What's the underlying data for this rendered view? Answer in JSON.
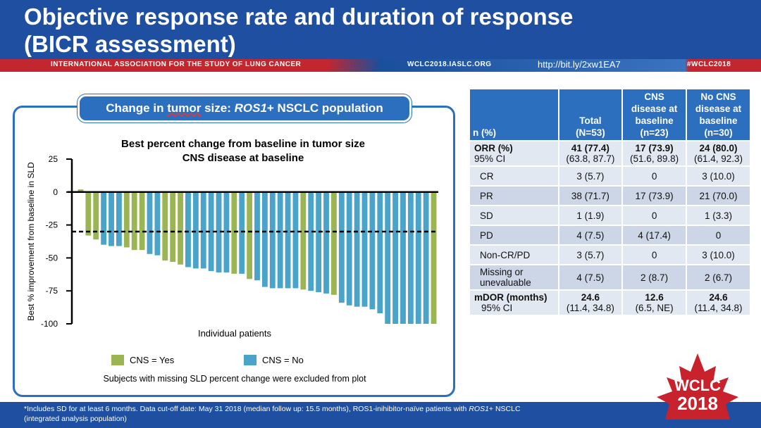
{
  "header": {
    "title_line1": "Objective response rate and duration of response",
    "title_line2": "(BICR assessment)",
    "association": "INTERNATIONAL ASSOCIATION FOR THE STUDY OF LUNG CANCER",
    "website": "WCLC2018.IASLC.ORG",
    "link": "http://bit.ly/2xw1EA7",
    "hashtag": "#WCLC2018"
  },
  "chart_box": {
    "pill_prefix": "Change in ",
    "pill_under": "tumor",
    "pill_mid": " size: ",
    "pill_italic": "ROS1",
    "pill_suffix": "+ NSCLC population"
  },
  "chart_data": {
    "type": "bar",
    "title_line1": "Best percent change from baseline in tumor size",
    "title_line2": "CNS disease at baseline",
    "xlabel": "Individual patients",
    "ylabel": "Best % improvement from baseline in SLD",
    "ylim": [
      -100,
      25
    ],
    "yticks": [
      "25",
      "0",
      "-25",
      "-50",
      "-75",
      "-100"
    ],
    "reference_line": -30,
    "colors": {
      "yes": "#9cb554",
      "no": "#4aa3c8"
    },
    "legend": [
      {
        "key": "yes",
        "label": "CNS = Yes"
      },
      {
        "key": "no",
        "label": "CNS = No"
      }
    ],
    "note": "Subjects with missing SLD percent change were excluded from plot",
    "values": [
      2,
      -33,
      -36,
      -40,
      -41,
      -41,
      -42,
      -44,
      -44,
      -47,
      -48,
      -52,
      -53,
      -55,
      -57,
      -58,
      -58,
      -60,
      -61,
      -61,
      -62,
      -62,
      -66,
      -67,
      -72,
      -73,
      -73,
      -73,
      -73,
      -74,
      -75,
      -76,
      -77,
      -78,
      -84,
      -86,
      -87,
      -87,
      -89,
      -92,
      -100,
      -100,
      -100,
      -100,
      -100,
      -100,
      -100
    ],
    "cns": [
      "yes",
      "yes",
      "yes",
      "no",
      "no",
      "no",
      "yes",
      "yes",
      "yes",
      "no",
      "no",
      "yes",
      "yes",
      "yes",
      "no",
      "no",
      "no",
      "no",
      "no",
      "no",
      "yes",
      "no",
      "yes",
      "no",
      "no",
      "no",
      "no",
      "no",
      "no",
      "yes",
      "no",
      "no",
      "no",
      "yes",
      "no",
      "no",
      "no",
      "no",
      "no",
      "no",
      "no",
      "no",
      "no",
      "no",
      "no",
      "no",
      "yes"
    ]
  },
  "table": {
    "headers": [
      "n (%)",
      "Total (N=53)",
      "CNS disease at baseline (n=23)",
      "No CNS disease at baseline (n=30)"
    ],
    "headers_lines": [
      [
        "n (%)"
      ],
      [
        "Total",
        "(N=53)"
      ],
      [
        "CNS",
        "disease at",
        "baseline",
        "(n=23)"
      ],
      [
        "No CNS",
        "disease at",
        "baseline",
        "(n=30)"
      ]
    ],
    "rows": [
      {
        "label": "ORR (%)",
        "label2": "95% CI",
        "bold": true,
        "cells": [
          "41 (77.4)",
          "17 (73.9)",
          "24 (80.0)"
        ],
        "cells2": [
          "(63.8, 87.7)",
          "(51.6, 89.8)",
          "(61.4, 92.3)"
        ]
      },
      {
        "label": "CR",
        "cells": [
          "3 (5.7)",
          "0",
          "3 (10.0)"
        ]
      },
      {
        "label": "PR",
        "cells": [
          "38 (71.7)",
          "17 (73.9)",
          "21 (70.0)"
        ]
      },
      {
        "label": "SD",
        "cells": [
          "1 (1.9)",
          "0",
          "1 (3.3)"
        ]
      },
      {
        "label": "PD",
        "cells": [
          "4 (7.5)",
          "4 (17.4)",
          "0"
        ]
      },
      {
        "label": "Non-CR/PD",
        "cells": [
          "3 (5.7)",
          "0",
          "3 (10.0)"
        ]
      },
      {
        "label": "Missing or",
        "label2": "unevaluable",
        "cells": [
          "4 (7.5)",
          "2 (8.7)",
          "2 (6.7)"
        ]
      },
      {
        "label": "mDOR (months)",
        "label2": "95% CI",
        "bold": true,
        "cells": [
          "24.6",
          "12.6",
          "24.6"
        ],
        "cells2": [
          "(11.4, 34.8)",
          "(6.5, NE)",
          "(11.4, 34.8)"
        ]
      }
    ]
  },
  "footnote": {
    "text1": "*Includes SD for at least 6 months. Data cut-off date: May 31 2018 (median follow up: 15.5 months), ROS1-inihibitor-naïve patients with ",
    "italic": "ROS1",
    "text2": "+ NSCLC",
    "line2": "(integrated analysis population)"
  },
  "logo": {
    "line1": "WCLC",
    "line2": "2018"
  }
}
